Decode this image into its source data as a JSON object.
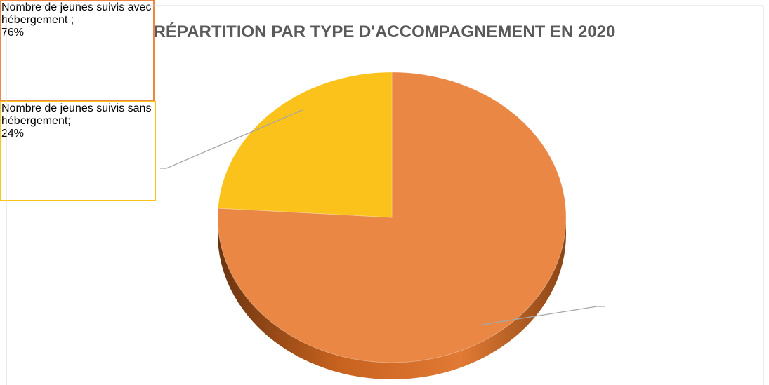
{
  "chart_data": {
    "type": "pie",
    "title": "RÉPARTITION PAR TYPE D'ACCOMPAGNEMENT EN 2020",
    "categories": [
      "Nombre de jeunes suivis avec hébergement ;",
      "Nombre de jeunes suivis sans hébergement;"
    ],
    "values": [
      76,
      24
    ],
    "value_labels": [
      "76%",
      "24%"
    ],
    "colors": [
      "#EA8744",
      "#FBC21B"
    ]
  }
}
